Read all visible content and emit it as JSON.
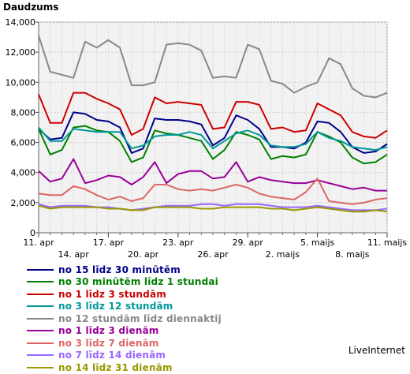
{
  "chart_data": {
    "type": "line",
    "title": "Daudzums",
    "ylim": [
      0,
      14000
    ],
    "yticks": [
      "0",
      "2,000",
      "4,000",
      "6,000",
      "8,000",
      "10,000",
      "12,000",
      "14,000"
    ],
    "grid": true,
    "legend_position": "bottom",
    "x_labels_upper": [
      {
        "label": "11. apr",
        "index": 0
      },
      {
        "label": "17. apr",
        "index": 6
      },
      {
        "label": "23. apr",
        "index": 12
      },
      {
        "label": "29. apr",
        "index": 18
      },
      {
        "label": "5. maijs",
        "index": 24
      },
      {
        "label": "11. maijs",
        "index": 30
      }
    ],
    "x_labels_lower": [
      {
        "label": "14. apr",
        "index": 3
      },
      {
        "label": "20. apr",
        "index": 9
      },
      {
        "label": "26. apr",
        "index": 15
      },
      {
        "label": "2. maijs",
        "index": 21
      },
      {
        "label": "8. maijs",
        "index": 27
      }
    ],
    "series": [
      {
        "name": "no 15 līdz 30 minūtēm",
        "color": "#00008b",
        "values": [
          6900,
          6200,
          6300,
          8000,
          7900,
          7500,
          7400,
          7000,
          5300,
          5600,
          7600,
          7500,
          7500,
          7400,
          7200,
          5800,
          6300,
          7800,
          7500,
          6900,
          5700,
          5700,
          5600,
          6000,
          7400,
          7300,
          6700,
          5700,
          5300,
          5400,
          5900
        ]
      },
      {
        "name": "no 30 minūtēm līdz 1 stundai",
        "color": "#008000",
        "values": [
          6900,
          5200,
          5500,
          7000,
          7100,
          6800,
          6700,
          6100,
          4700,
          5000,
          6800,
          6600,
          6500,
          6300,
          6100,
          4900,
          5500,
          6700,
          6500,
          6200,
          4900,
          5100,
          5000,
          5200,
          6700,
          6400,
          6000,
          5000,
          4600,
          4700,
          5200
        ]
      },
      {
        "name": "no 1 līdz 3 stundām",
        "color": "#cc0000",
        "values": [
          9200,
          7300,
          7300,
          9300,
          9300,
          8900,
          8600,
          8200,
          6500,
          6900,
          9000,
          8600,
          8700,
          8600,
          8500,
          6900,
          7000,
          8700,
          8700,
          8500,
          6900,
          7000,
          6700,
          6800,
          8600,
          8200,
          7800,
          6700,
          6400,
          6300,
          6800
        ]
      },
      {
        "name": "no 3 līdz 12 stundām",
        "color": "#009999",
        "values": [
          7000,
          6100,
          6100,
          6900,
          6800,
          6700,
          6700,
          6700,
          5600,
          5800,
          6400,
          6500,
          6500,
          6700,
          6500,
          5600,
          6100,
          6600,
          6800,
          6500,
          5800,
          5700,
          5700,
          5900,
          6700,
          6300,
          6100,
          5700,
          5600,
          5500,
          5700
        ]
      },
      {
        "name": "no 12 stundām līdz diennaktij",
        "color": "#888888",
        "values": [
          13100,
          10700,
          10500,
          10300,
          12700,
          12300,
          12800,
          12300,
          9800,
          9800,
          10000,
          12500,
          12600,
          12500,
          12100,
          10300,
          10400,
          10300,
          12500,
          12200,
          10100,
          9900,
          9300,
          9700,
          10000,
          11600,
          11200,
          9600,
          9100,
          9000,
          9300
        ]
      },
      {
        "name": "no 1 līdz 3 dienām",
        "color": "#990099",
        "values": [
          4100,
          3400,
          3600,
          4900,
          3300,
          3500,
          3800,
          3700,
          3200,
          3700,
          4700,
          3300,
          3900,
          4100,
          4100,
          3600,
          3700,
          4700,
          3400,
          3700,
          3500,
          3400,
          3300,
          3300,
          3500,
          3300,
          3100,
          2900,
          3000,
          2800,
          2800
        ]
      },
      {
        "name": "no 3 līdz 7 dienām",
        "color": "#dd6666",
        "values": [
          2600,
          2500,
          2500,
          3100,
          2900,
          2500,
          2200,
          2400,
          2100,
          2300,
          3200,
          3200,
          2900,
          2800,
          2900,
          2800,
          3000,
          3200,
          3000,
          2600,
          2400,
          2300,
          2200,
          2700,
          3600,
          2100,
          2000,
          1900,
          2000,
          2200,
          2300
        ]
      },
      {
        "name": "no 7 līdz 14 dienām",
        "color": "#9966ff",
        "values": [
          1900,
          1700,
          1800,
          1800,
          1800,
          1700,
          1700,
          1600,
          1500,
          1600,
          1700,
          1800,
          1800,
          1800,
          1900,
          1900,
          1800,
          1900,
          1900,
          1900,
          1800,
          1700,
          1700,
          1700,
          1800,
          1700,
          1600,
          1500,
          1500,
          1500,
          1600
        ]
      },
      {
        "name": "no 14 līdz 31 dienām",
        "color": "#999900",
        "values": [
          1800,
          1600,
          1700,
          1700,
          1700,
          1700,
          1600,
          1600,
          1500,
          1500,
          1700,
          1700,
          1700,
          1700,
          1600,
          1600,
          1700,
          1700,
          1700,
          1700,
          1600,
          1600,
          1500,
          1600,
          1700,
          1600,
          1500,
          1400,
          1400,
          1500,
          1400
        ]
      }
    ]
  },
  "footer": "LiveInternet"
}
